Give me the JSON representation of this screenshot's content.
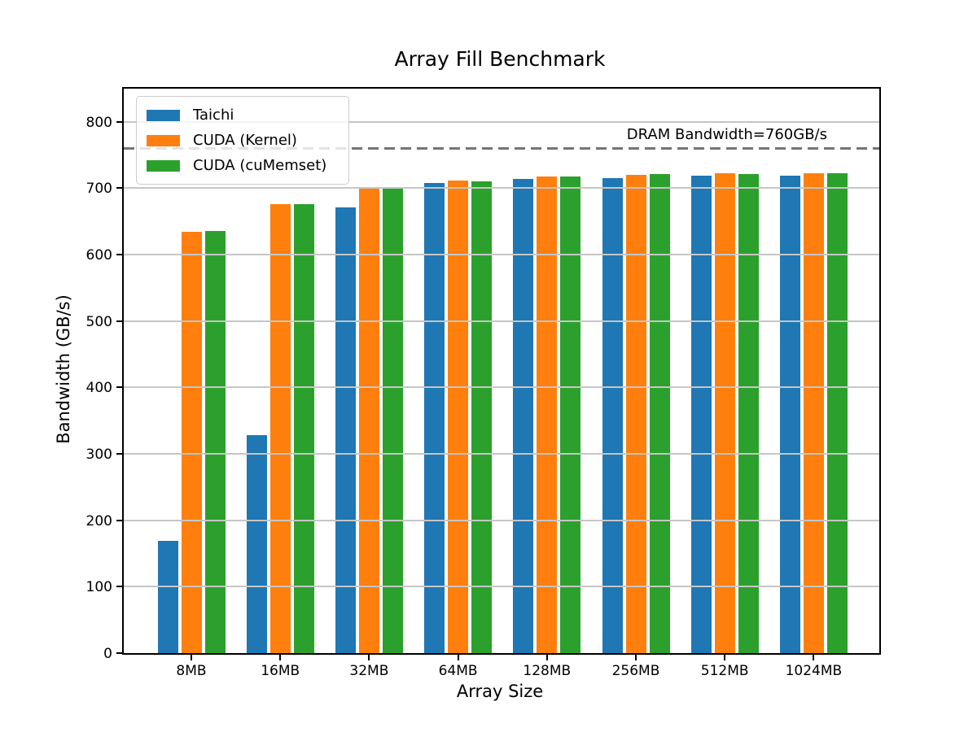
{
  "chart_data": {
    "type": "bar",
    "title": "Array Fill Benchmark",
    "xlabel": "Array Size",
    "ylabel": "Bandwidth (GB/s)",
    "categories": [
      "8MB",
      "16MB",
      "32MB",
      "64MB",
      "128MB",
      "256MB",
      "512MB",
      "1024MB"
    ],
    "series": [
      {
        "name": "Taichi",
        "color": "#1f77b4",
        "values": [
          169,
          328,
          671,
          708,
          714,
          715,
          719,
          719
        ]
      },
      {
        "name": "CUDA (Kernel)",
        "color": "#ff7f0e",
        "values": [
          634,
          676,
          699,
          712,
          718,
          720,
          723,
          723
        ]
      },
      {
        "name": "CUDA (cuMemset)",
        "color": "#2ca02c",
        "values": [
          636,
          676,
          699,
          710,
          718,
          721,
          722,
          723
        ]
      }
    ],
    "yticks": [
      0,
      100,
      200,
      300,
      400,
      500,
      600,
      700,
      800
    ],
    "ylim": [
      0,
      850
    ],
    "grid": "horizontal",
    "grid_color": "#c6c6c6",
    "legend_position": "upper left",
    "hline": {
      "value": 760,
      "label": "DRAM Bandwidth=760GB/s",
      "style": "dashed",
      "color": "#757575"
    }
  }
}
